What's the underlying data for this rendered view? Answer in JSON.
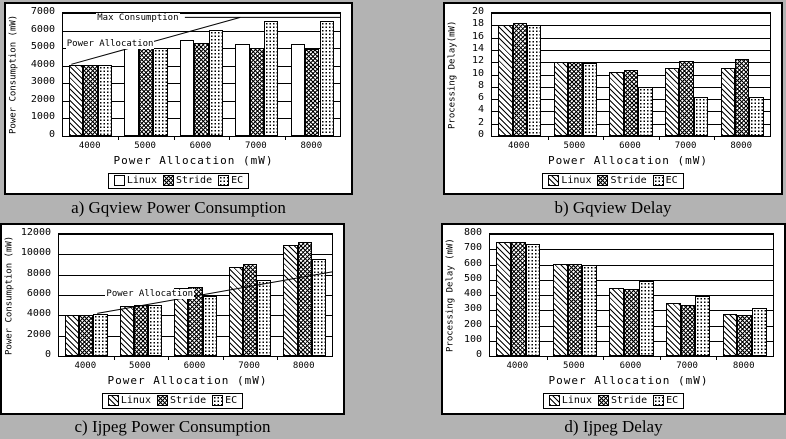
{
  "page": {
    "background_color": "#b3b3b3",
    "panel_background": "#ffffff",
    "line_color": "#000000"
  },
  "chart_data": [
    {
      "id": "a",
      "type": "bar",
      "caption": "a) Gqview Power Consumption",
      "xlabel": "Power Allocation (mW)",
      "ylabel": "Power Consumption (mW)",
      "ylim": [
        0,
        7000
      ],
      "ystep": 1000,
      "grid": true,
      "legend_position": "bottom",
      "categories": [
        "4000",
        "5000",
        "6000",
        "7000",
        "8000"
      ],
      "series": [
        {
          "name": "Linux",
          "pattern": "white",
          "pattern_overrides": {
            "0": "diag"
          },
          "values": [
            4050,
            5000,
            5450,
            5250,
            5250
          ]
        },
        {
          "name": "Stride",
          "pattern": "cross",
          "values": [
            4050,
            5050,
            5300,
            5000,
            4950
          ]
        },
        {
          "name": "EC",
          "pattern": "dot",
          "values": [
            4050,
            5000,
            6050,
            6550,
            6550
          ]
        }
      ],
      "annotations": {
        "lines": [
          {
            "x1": 0.44,
            "y1": 6750,
            "x2": 1.0,
            "y2": 6750
          },
          {
            "x1": 0.03,
            "y1": 4080,
            "x2": 0.64,
            "y2": 6750
          }
        ],
        "labels": [
          {
            "x": 0.12,
            "y": 6980,
            "text": "Max Consumption"
          },
          {
            "x": 0.01,
            "y": 5500,
            "text": "Power Allocation"
          }
        ]
      }
    },
    {
      "id": "b",
      "type": "bar",
      "caption": "b) Gqview Delay",
      "xlabel": "Power Allocation (mW)",
      "ylabel": "Processing Delay(mW)",
      "ylim": [
        0,
        20
      ],
      "ystep": 2,
      "grid": true,
      "legend_position": "bottom",
      "categories": [
        "4000",
        "5000",
        "6000",
        "7000",
        "8000"
      ],
      "series": [
        {
          "name": "Linux",
          "pattern": "diag",
          "values": [
            18,
            12,
            10.4,
            11,
            11
          ]
        },
        {
          "name": "Stride",
          "pattern": "cross",
          "values": [
            18.3,
            12,
            10.7,
            12.2,
            12.5
          ]
        },
        {
          "name": "EC",
          "pattern": "dot",
          "values": [
            18,
            11.9,
            8,
            6.4,
            6.4
          ]
        }
      ]
    },
    {
      "id": "c",
      "type": "bar",
      "caption": "c) Ijpeg Power Consumption",
      "xlabel": "Power Allocation (mW)",
      "ylabel": "Power Consumption (mW)",
      "ylim": [
        0,
        12000
      ],
      "ystep": 2000,
      "grid": true,
      "legend_position": "bottom",
      "categories": [
        "4000",
        "5000",
        "6000",
        "7000",
        "8000"
      ],
      "series": [
        {
          "name": "Linux",
          "pattern": "diag",
          "values": [
            4050,
            4900,
            6650,
            8750,
            10900
          ]
        },
        {
          "name": "Stride",
          "pattern": "cross",
          "values": [
            4050,
            5050,
            6750,
            9050,
            11250
          ]
        },
        {
          "name": "EC",
          "pattern": "dot",
          "values": [
            4100,
            5000,
            5950,
            7500,
            9550
          ]
        }
      ],
      "annotations": {
        "lines": [
          {
            "x1": 0.14,
            "y1": 4190,
            "x2": 1.0,
            "y2": 8275
          }
        ],
        "labels": [
          {
            "x": 0.17,
            "y": 6550,
            "text": "Power Allocation"
          }
        ]
      }
    },
    {
      "id": "d",
      "type": "bar",
      "caption": "d) Ijpeg Delay",
      "xlabel": "Power Allocation (mW)",
      "ylabel": "Processing Delay (mW)",
      "ylim": [
        0,
        800
      ],
      "ystep": 100,
      "grid": true,
      "legend_position": "bottom",
      "categories": [
        "4000",
        "5000",
        "6000",
        "7000",
        "8000"
      ],
      "series": [
        {
          "name": "Linux",
          "pattern": "diag",
          "values": [
            748,
            600,
            448,
            345,
            278
          ]
        },
        {
          "name": "Stride",
          "pattern": "cross",
          "values": [
            748,
            600,
            442,
            332,
            270
          ]
        },
        {
          "name": "EC",
          "pattern": "dot",
          "values": [
            737,
            597,
            490,
            395,
            315
          ]
        }
      ]
    }
  ]
}
